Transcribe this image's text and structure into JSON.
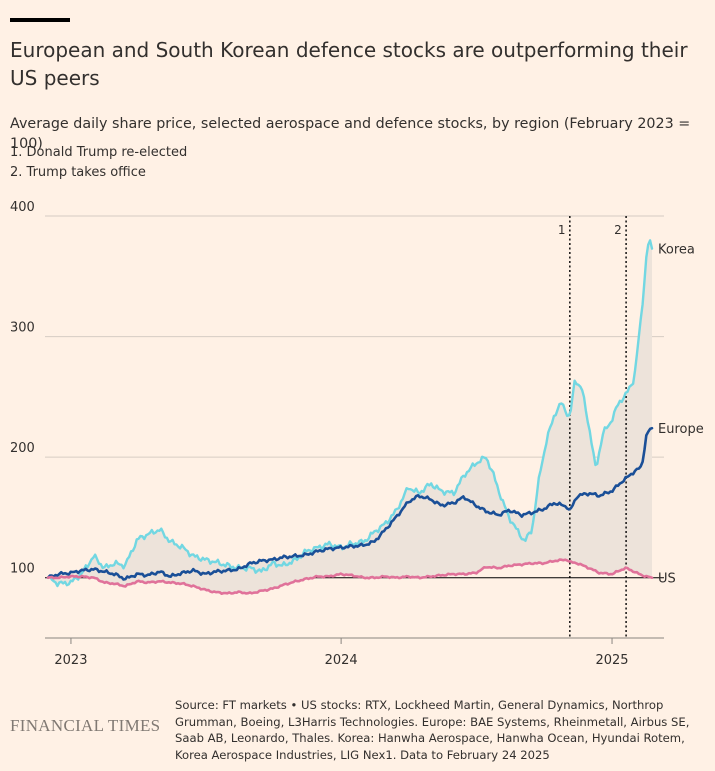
{
  "header": {
    "title": "European and South Korean defence stocks are outperforming their US peers",
    "subtitle": "Average daily share price, selected aerospace and defence stocks, by region (February 2023 = 100)",
    "annotations": [
      "1. Donald Trump re-elected",
      "2. Trump takes office"
    ]
  },
  "footer": {
    "brand": "FINANCIAL TIMES",
    "source": "Source: FT markets • US stocks: RTX, Lockheed Martin, General Dynamics, Northrop Grumman, Boeing, L3Harris Technologies. Europe: BAE Systems, Rheinmetall, Airbus SE, Saab AB, Leonardo, Thales. Korea: Hanwha Aerospace, Hanwha Ocean, Hyundai Rotem, Korea Aerospace Industries, LIG Nex1. Data to February 24 2025"
  },
  "colors": {
    "background": "#fff1e5",
    "korea": "#72d7e2",
    "europe": "#1a4f97",
    "us": "#e0729a",
    "band": "#ede3da",
    "grid": "#d6ccc3",
    "text": "#33302e"
  },
  "chart_data": {
    "type": "line",
    "title": "European and South Korean defence stocks are outperforming their US peers",
    "subtitle": "Average daily share price, selected aerospace and defence stocks, by region (February 2023 = 100)",
    "xlabel": "",
    "ylabel": "",
    "x_range": [
      "2022-12-01",
      "2025-02-24"
    ],
    "ylim": [
      50,
      400
    ],
    "y_ticks": [
      100,
      200,
      300,
      400
    ],
    "x_ticks": [
      {
        "date": "2023-01-01",
        "label": "2023"
      },
      {
        "date": "2024-01-01",
        "label": "2024"
      },
      {
        "date": "2025-01-01",
        "label": "2025"
      }
    ],
    "grid": true,
    "baseline": 100,
    "markers": [
      {
        "label": "1",
        "date": "2024-11-05",
        "text": "Donald Trump re-elected"
      },
      {
        "label": "2",
        "date": "2025-01-20",
        "text": "Trump takes office"
      }
    ],
    "series": [
      {
        "name": "Korea",
        "color": "#72d7e2",
        "points": [
          [
            "2022-12-01",
            100
          ],
          [
            "2022-12-15",
            95
          ],
          [
            "2023-01-01",
            96
          ],
          [
            "2023-01-15",
            103
          ],
          [
            "2023-02-01",
            118
          ],
          [
            "2023-02-15",
            108
          ],
          [
            "2023-03-01",
            112
          ],
          [
            "2023-03-15",
            110
          ],
          [
            "2023-04-01",
            132
          ],
          [
            "2023-04-15",
            136
          ],
          [
            "2023-05-01",
            140
          ],
          [
            "2023-05-15",
            130
          ],
          [
            "2023-06-01",
            125
          ],
          [
            "2023-06-15",
            118
          ],
          [
            "2023-07-01",
            115
          ],
          [
            "2023-07-15",
            113
          ],
          [
            "2023-08-01",
            110
          ],
          [
            "2023-08-15",
            108
          ],
          [
            "2023-09-01",
            108
          ],
          [
            "2023-09-15",
            105
          ],
          [
            "2023-10-01",
            112
          ],
          [
            "2023-10-15",
            110
          ],
          [
            "2023-11-01",
            115
          ],
          [
            "2023-11-15",
            122
          ],
          [
            "2023-12-01",
            125
          ],
          [
            "2023-12-15",
            128
          ],
          [
            "2024-01-01",
            125
          ],
          [
            "2024-01-15",
            128
          ],
          [
            "2024-02-01",
            130
          ],
          [
            "2024-02-15",
            138
          ],
          [
            "2024-03-01",
            145
          ],
          [
            "2024-03-15",
            155
          ],
          [
            "2024-04-01",
            175
          ],
          [
            "2024-04-15",
            170
          ],
          [
            "2024-05-01",
            178
          ],
          [
            "2024-05-15",
            172
          ],
          [
            "2024-06-01",
            170
          ],
          [
            "2024-06-15",
            185
          ],
          [
            "2024-07-01",
            195
          ],
          [
            "2024-07-15",
            200
          ],
          [
            "2024-07-25",
            185
          ],
          [
            "2024-08-05",
            165
          ],
          [
            "2024-08-15",
            150
          ],
          [
            "2024-08-25",
            140
          ],
          [
            "2024-09-05",
            130
          ],
          [
            "2024-09-15",
            140
          ],
          [
            "2024-09-25",
            185
          ],
          [
            "2024-10-05",
            215
          ],
          [
            "2024-10-15",
            235
          ],
          [
            "2024-10-25",
            245
          ],
          [
            "2024-11-05",
            232
          ],
          [
            "2024-11-12",
            265
          ],
          [
            "2024-11-22",
            255
          ],
          [
            "2024-12-01",
            225
          ],
          [
            "2024-12-10",
            190
          ],
          [
            "2024-12-20",
            220
          ],
          [
            "2024-12-31",
            230
          ],
          [
            "2025-01-10",
            245
          ],
          [
            "2025-01-20",
            252
          ],
          [
            "2025-01-31",
            265
          ],
          [
            "2025-02-10",
            320
          ],
          [
            "2025-02-17",
            370
          ],
          [
            "2025-02-20",
            380
          ],
          [
            "2025-02-24",
            373
          ]
        ]
      },
      {
        "name": "Europe",
        "color": "#1a4f97",
        "points": [
          [
            "2022-12-01",
            100
          ],
          [
            "2022-12-15",
            103
          ],
          [
            "2023-01-01",
            104
          ],
          [
            "2023-01-15",
            106
          ],
          [
            "2023-02-01",
            107
          ],
          [
            "2023-02-15",
            105
          ],
          [
            "2023-03-01",
            103
          ],
          [
            "2023-03-15",
            99
          ],
          [
            "2023-04-01",
            103
          ],
          [
            "2023-04-15",
            102
          ],
          [
            "2023-05-01",
            105
          ],
          [
            "2023-05-15",
            101
          ],
          [
            "2023-06-01",
            104
          ],
          [
            "2023-06-15",
            106
          ],
          [
            "2023-07-01",
            103
          ],
          [
            "2023-07-15",
            105
          ],
          [
            "2023-08-01",
            106
          ],
          [
            "2023-08-15",
            107
          ],
          [
            "2023-09-01",
            112
          ],
          [
            "2023-09-15",
            114
          ],
          [
            "2023-10-01",
            115
          ],
          [
            "2023-10-15",
            117
          ],
          [
            "2023-11-01",
            118
          ],
          [
            "2023-11-15",
            119
          ],
          [
            "2023-12-01",
            122
          ],
          [
            "2023-12-15",
            124
          ],
          [
            "2024-01-01",
            125
          ],
          [
            "2024-01-15",
            126
          ],
          [
            "2024-02-01",
            127
          ],
          [
            "2024-02-15",
            130
          ],
          [
            "2024-03-01",
            140
          ],
          [
            "2024-03-15",
            150
          ],
          [
            "2024-04-01",
            163
          ],
          [
            "2024-04-15",
            168
          ],
          [
            "2024-05-01",
            165
          ],
          [
            "2024-05-15",
            160
          ],
          [
            "2024-06-01",
            162
          ],
          [
            "2024-06-15",
            167
          ],
          [
            "2024-07-01",
            160
          ],
          [
            "2024-07-15",
            155
          ],
          [
            "2024-08-01",
            152
          ],
          [
            "2024-08-15",
            156
          ],
          [
            "2024-09-01",
            152
          ],
          [
            "2024-09-15",
            154
          ],
          [
            "2024-10-01",
            157
          ],
          [
            "2024-10-15",
            162
          ],
          [
            "2024-11-01",
            159
          ],
          [
            "2024-11-05",
            155
          ],
          [
            "2024-11-15",
            168
          ],
          [
            "2024-12-01",
            170
          ],
          [
            "2024-12-15",
            168
          ],
          [
            "2025-01-01",
            172
          ],
          [
            "2025-01-15",
            180
          ],
          [
            "2025-01-31",
            188
          ],
          [
            "2025-02-10",
            192
          ],
          [
            "2025-02-17",
            220
          ],
          [
            "2025-02-24",
            224
          ]
        ]
      },
      {
        "name": "US",
        "color": "#e0729a",
        "points": [
          [
            "2022-12-01",
            100
          ],
          [
            "2022-12-15",
            100
          ],
          [
            "2023-01-01",
            101
          ],
          [
            "2023-01-15",
            101
          ],
          [
            "2023-02-01",
            100
          ],
          [
            "2023-02-15",
            96
          ],
          [
            "2023-03-01",
            95
          ],
          [
            "2023-03-15",
            93
          ],
          [
            "2023-04-01",
            97
          ],
          [
            "2023-04-15",
            96
          ],
          [
            "2023-05-01",
            97
          ],
          [
            "2023-05-15",
            96
          ],
          [
            "2023-06-01",
            95
          ],
          [
            "2023-06-15",
            93
          ],
          [
            "2023-07-01",
            90
          ],
          [
            "2023-07-15",
            88
          ],
          [
            "2023-08-01",
            87
          ],
          [
            "2023-08-15",
            88
          ],
          [
            "2023-09-01",
            87
          ],
          [
            "2023-09-15",
            89
          ],
          [
            "2023-10-01",
            91
          ],
          [
            "2023-10-15",
            94
          ],
          [
            "2023-11-01",
            97
          ],
          [
            "2023-11-15",
            99
          ],
          [
            "2023-12-01",
            101
          ],
          [
            "2023-12-15",
            101
          ],
          [
            "2024-01-01",
            103
          ],
          [
            "2024-01-15",
            102
          ],
          [
            "2024-02-01",
            100
          ],
          [
            "2024-02-15",
            100
          ],
          [
            "2024-03-01",
            101
          ],
          [
            "2024-03-15",
            100
          ],
          [
            "2024-04-01",
            101
          ],
          [
            "2024-04-15",
            100
          ],
          [
            "2024-05-01",
            101
          ],
          [
            "2024-05-15",
            102
          ],
          [
            "2024-06-01",
            103
          ],
          [
            "2024-06-15",
            103
          ],
          [
            "2024-07-01",
            104
          ],
          [
            "2024-07-15",
            109
          ],
          [
            "2024-08-01",
            108
          ],
          [
            "2024-08-15",
            110
          ],
          [
            "2024-09-01",
            111
          ],
          [
            "2024-09-15",
            112
          ],
          [
            "2024-10-01",
            112
          ],
          [
            "2024-10-15",
            114
          ],
          [
            "2024-11-01",
            115
          ],
          [
            "2024-11-05",
            113
          ],
          [
            "2024-11-15",
            112
          ],
          [
            "2024-12-01",
            108
          ],
          [
            "2024-12-15",
            104
          ],
          [
            "2025-01-01",
            103
          ],
          [
            "2025-01-15",
            107
          ],
          [
            "2025-01-20",
            108
          ],
          [
            "2025-01-31",
            105
          ],
          [
            "2025-02-10",
            102
          ],
          [
            "2025-02-24",
            100
          ]
        ]
      }
    ]
  }
}
